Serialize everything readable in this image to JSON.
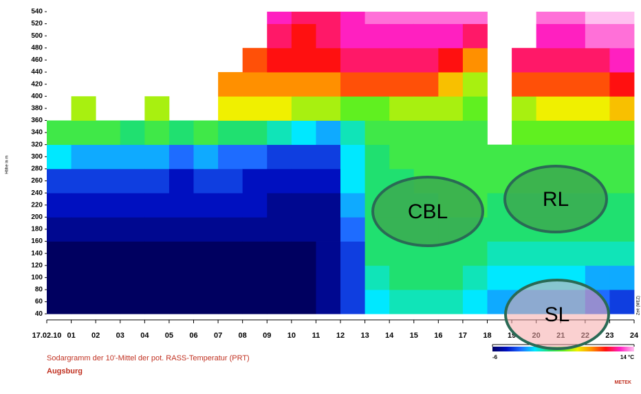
{
  "chart_data": {
    "type": "heatmap",
    "y_label": "Höhe in m",
    "x_label": "Zeit (MEZ)",
    "caption": "Sodargramm der 10'-Mittel der pot. RASS-Temperatur (PRT)",
    "location": "Augsburg",
    "logo": "METEK",
    "xlim": [
      0,
      24
    ],
    "ylim": [
      30,
      540
    ],
    "xticks": [
      {
        "value": 0,
        "label": "17.02.10"
      },
      {
        "value": 1,
        "label": "01"
      },
      {
        "value": 2,
        "label": "02"
      },
      {
        "value": 3,
        "label": "03"
      },
      {
        "value": 4,
        "label": "04"
      },
      {
        "value": 5,
        "label": "05"
      },
      {
        "value": 6,
        "label": "06"
      },
      {
        "value": 7,
        "label": "07"
      },
      {
        "value": 8,
        "label": "08"
      },
      {
        "value": 9,
        "label": "09"
      },
      10,
      11,
      12,
      13,
      14,
      15,
      16,
      17,
      18,
      {
        "value": 19,
        "label": "19"
      },
      20,
      21,
      22,
      23,
      24
    ],
    "yticks": [
      40,
      60,
      80,
      100,
      120,
      140,
      160,
      180,
      200,
      220,
      240,
      260,
      280,
      300,
      320,
      340,
      360,
      380,
      400,
      420,
      440,
      460,
      480,
      500,
      520,
      540
    ],
    "x_bins": [
      0,
      1,
      2,
      3,
      4,
      5,
      6,
      7,
      8,
      9,
      10,
      11,
      12,
      13,
      14,
      15,
      16,
      17,
      18,
      19,
      20,
      21,
      22,
      23,
      24
    ],
    "y_bins": [
      40,
      80,
      120,
      160,
      200,
      240,
      280,
      320,
      360,
      400,
      440,
      480,
      520,
      540
    ],
    "z": [
      [
        -6,
        -6,
        -6,
        -5,
        -4,
        -3,
        0,
        3,
        null,
        null,
        null,
        null,
        null
      ],
      [
        -6,
        -6,
        -6,
        -5,
        -4,
        -3,
        -1,
        3,
        5,
        null,
        null,
        null,
        null
      ],
      [
        -6,
        -6,
        -6,
        -5,
        -4,
        -3,
        -1,
        3,
        null,
        null,
        null,
        null,
        null
      ],
      [
        -6,
        -6,
        -6,
        -5,
        -4,
        -3,
        -1,
        2,
        null,
        null,
        null,
        null,
        null
      ],
      [
        -6,
        -6,
        -6,
        -5,
        -4,
        -3,
        -1,
        3,
        5,
        null,
        null,
        null,
        null
      ],
      [
        -6,
        -6,
        -6,
        -5,
        -4,
        -4,
        -2,
        2,
        null,
        null,
        null,
        null,
        null
      ],
      [
        -6,
        -6,
        -6,
        -5,
        -4,
        -3,
        -1,
        3,
        null,
        null,
        null,
        null,
        null
      ],
      [
        -6,
        -6,
        -6,
        -5,
        -4,
        -3,
        -2,
        2,
        6,
        8,
        null,
        null,
        null
      ],
      [
        -6,
        -6,
        -6,
        -5,
        -4,
        -4,
        -2,
        2,
        6,
        8,
        9,
        null,
        null
      ],
      [
        -6,
        -6,
        -6,
        -5,
        -5,
        -4,
        -3,
        1,
        6,
        8,
        10,
        11,
        12
      ],
      [
        -6,
        -6,
        -6,
        -5,
        -5,
        -4,
        -3,
        0,
        5,
        8,
        10,
        10,
        11
      ],
      [
        -5,
        -5,
        -5,
        -5,
        -5,
        -4,
        -3,
        -1,
        5,
        8,
        10,
        11,
        11
      ],
      [
        -3,
        -3,
        -3,
        -2,
        -1,
        0,
        0,
        1,
        4,
        9,
        11,
        12,
        12
      ],
      [
        0,
        1,
        2,
        2,
        2,
        2,
        2,
        3,
        4,
        9,
        11,
        12,
        13
      ],
      [
        1,
        2,
        2,
        2,
        2,
        2,
        3,
        3,
        5,
        9,
        11,
        12,
        13
      ],
      [
        1,
        2,
        2,
        2,
        2,
        3,
        3,
        3,
        5,
        9,
        11,
        12,
        13
      ],
      [
        1,
        2,
        2,
        2,
        3,
        3,
        3,
        3,
        5,
        7,
        10,
        12,
        13
      ],
      [
        0,
        1,
        2,
        2,
        3,
        3,
        3,
        3,
        4,
        5,
        8,
        11,
        13
      ],
      [
        -1,
        0,
        1,
        2,
        2,
        3,
        3,
        null,
        null,
        null,
        null,
        null,
        null
      ],
      [
        -1,
        0,
        1,
        2,
        2,
        3,
        3,
        4,
        5,
        9,
        11,
        null,
        null
      ],
      [
        -1,
        0,
        1,
        2,
        2,
        3,
        3,
        4,
        6,
        9,
        11,
        12,
        13
      ],
      [
        -1,
        0,
        1,
        2,
        2,
        3,
        3,
        4,
        6,
        9,
        11,
        12,
        13
      ],
      [
        -2,
        -1,
        1,
        2,
        2,
        3,
        3,
        4,
        6,
        9,
        11,
        13,
        14
      ],
      [
        -3,
        -1,
        1,
        2,
        2,
        3,
        3,
        4,
        7,
        10,
        12,
        13,
        14
      ]
    ],
    "clim": [
      -6,
      14
    ],
    "colorbar_ticks": [
      -6,
      {
        "value": 14,
        "label": "14 °C"
      }
    ],
    "colorscale": [
      "#000060",
      "#0010c0",
      "#1e6cff",
      "#00e8ff",
      "#20e070",
      "#60f020",
      "#f0f000",
      "#ff9000",
      "#ff1010",
      "#ff20c0",
      "#ffc0f0"
    ],
    "annotations": [
      "CBL",
      "RL",
      "SL"
    ]
  }
}
